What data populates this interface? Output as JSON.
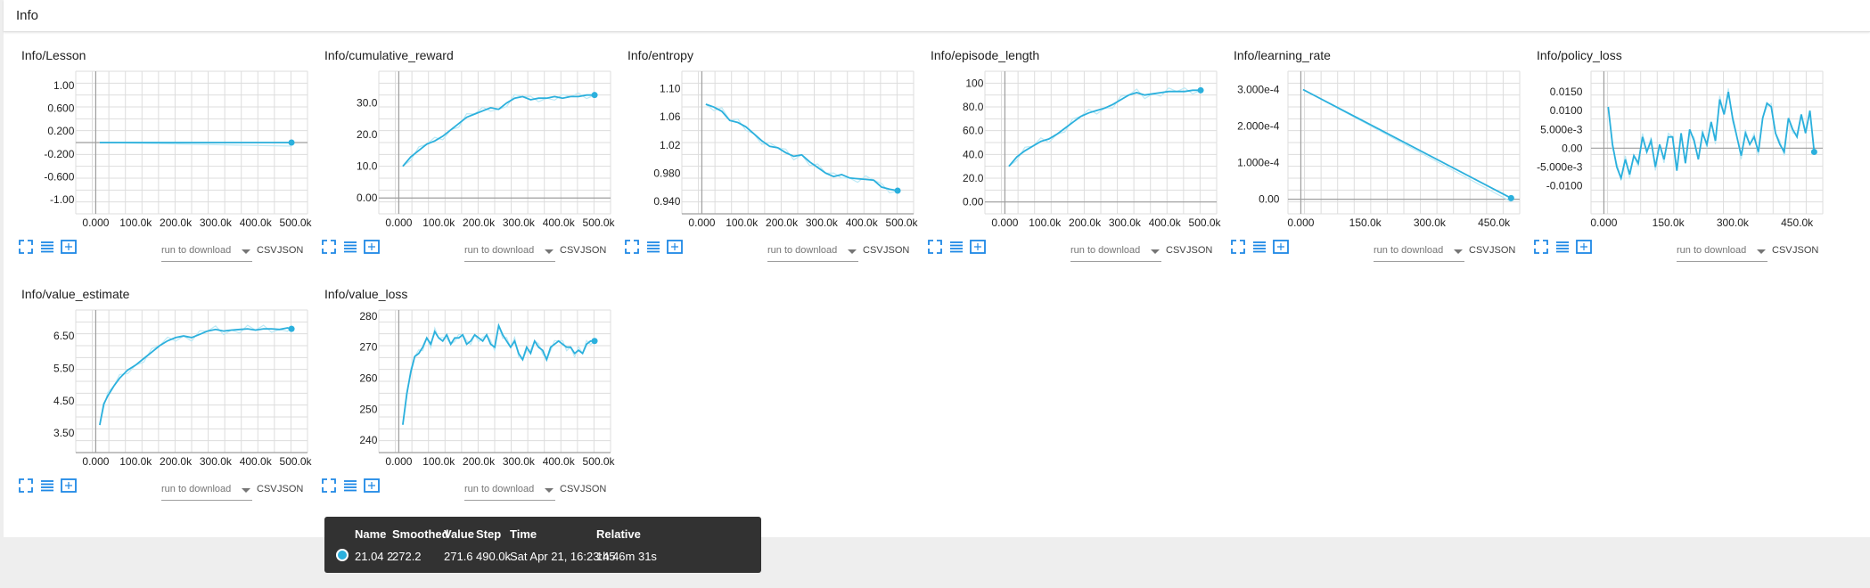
{
  "section": {
    "title": "Info"
  },
  "toolbar": {
    "run_select": "run to download",
    "csv": "CSV",
    "json": "JSON"
  },
  "colors": {
    "line": "#2bb0dd",
    "raw_line": "#bde9f5",
    "grid": "#dddddd",
    "axis": "#9e9e9e"
  },
  "icons": {
    "fit": "fit-domain-icon",
    "log": "log-scale-icon",
    "expand": "expand-chart-icon"
  },
  "chart_data": [
    {
      "title": "Info/Lesson",
      "type": "line",
      "xlim": [
        -50000,
        530000
      ],
      "ylim": [
        -1.25,
        1.25
      ],
      "xticks": [
        0,
        100000,
        200000,
        300000,
        400000,
        500000
      ],
      "xtick_labels": [
        "0.000",
        "100.0k",
        "200.0k",
        "300.0k",
        "400.0k",
        "500.0k"
      ],
      "yticks": [
        1,
        0.6,
        0.2,
        -0.2,
        -0.6,
        -1
      ],
      "ytick_labels": [
        "1.00",
        "0.600",
        "0.200",
        "-0.200",
        "-0.600",
        "-1.00"
      ],
      "series": [
        {
          "x": [
            10000,
            490000
          ],
          "y": [
            0,
            0
          ]
        }
      ]
    },
    {
      "title": "Info/cumulative_reward",
      "type": "line",
      "xlim": [
        -50000,
        530000
      ],
      "ylim": [
        -5,
        40
      ],
      "xticks": [
        0,
        100000,
        200000,
        300000,
        400000,
        500000
      ],
      "xtick_labels": [
        "0.000",
        "100.0k",
        "200.0k",
        "300.0k",
        "400.0k",
        "500.0k"
      ],
      "yticks": [
        0,
        10,
        20,
        30
      ],
      "ytick_labels": [
        "0.00",
        "10.0",
        "20.0",
        "30.0"
      ],
      "series": [
        {
          "x": [
            10000,
            30000,
            50000,
            70000,
            90000,
            110000,
            130000,
            150000,
            170000,
            190000,
            210000,
            230000,
            250000,
            270000,
            290000,
            310000,
            330000,
            350000,
            370000,
            390000,
            410000,
            430000,
            450000,
            470000,
            490000
          ],
          "y": [
            10,
            13,
            15,
            17,
            18,
            19.5,
            21.5,
            23.5,
            25.5,
            26.5,
            27.5,
            28.5,
            28,
            30,
            31.5,
            32,
            31,
            31.5,
            31.5,
            32,
            31.5,
            32,
            32,
            32.5,
            32.5
          ]
        }
      ]
    },
    {
      "title": "Info/entropy",
      "type": "line",
      "xlim": [
        -50000,
        530000
      ],
      "ylim": [
        0.922,
        1.125
      ],
      "xticks": [
        0,
        100000,
        200000,
        300000,
        400000,
        500000
      ],
      "xtick_labels": [
        "0.000",
        "100.0k",
        "200.0k",
        "300.0k",
        "400.0k",
        "500.0k"
      ],
      "yticks": [
        1.1,
        1.06,
        1.02,
        0.98,
        0.94
      ],
      "ytick_labels": [
        "1.10",
        "1.06",
        "1.02",
        "0.980",
        "0.940"
      ],
      "series": [
        {
          "x": [
            10000,
            30000,
            50000,
            70000,
            90000,
            110000,
            130000,
            150000,
            170000,
            190000,
            210000,
            230000,
            250000,
            270000,
            290000,
            310000,
            330000,
            350000,
            370000,
            390000,
            410000,
            430000,
            450000,
            470000,
            490000
          ],
          "y": [
            1.078,
            1.074,
            1.068,
            1.055,
            1.052,
            1.046,
            1.036,
            1.026,
            1.018,
            1.016,
            1.009,
            1.004,
            1.006,
            0.996,
            0.988,
            0.98,
            0.975,
            0.978,
            0.973,
            0.972,
            0.971,
            0.97,
            0.96,
            0.957,
            0.955
          ]
        }
      ]
    },
    {
      "title": "Info/episode_length",
      "type": "line",
      "xlim": [
        -50000,
        530000
      ],
      "ylim": [
        -10,
        110
      ],
      "xticks": [
        0,
        100000,
        200000,
        300000,
        400000,
        500000
      ],
      "xtick_labels": [
        "0.000",
        "100.0k",
        "200.0k",
        "300.0k",
        "400.0k",
        "500.0k"
      ],
      "yticks": [
        0,
        20,
        40,
        60,
        80,
        100
      ],
      "ytick_labels": [
        "0.00",
        "20.0",
        "40.0",
        "60.0",
        "80.0",
        "100"
      ],
      "series": [
        {
          "x": [
            10000,
            30000,
            50000,
            70000,
            90000,
            110000,
            130000,
            150000,
            170000,
            190000,
            210000,
            230000,
            250000,
            270000,
            290000,
            310000,
            330000,
            350000,
            370000,
            390000,
            410000,
            430000,
            450000,
            470000,
            490000
          ],
          "y": [
            30,
            38,
            43,
            47,
            51,
            53,
            57,
            62,
            67,
            72,
            75,
            77,
            79,
            82,
            86,
            90,
            92,
            90,
            91,
            92,
            93,
            93,
            93,
            94,
            94
          ]
        }
      ]
    },
    {
      "title": "Info/learning_rate",
      "type": "line",
      "xlim": [
        -30000,
        510000
      ],
      "ylim": [
        -4e-05,
        0.00035
      ],
      "xticks": [
        0,
        150000,
        300000,
        450000
      ],
      "xtick_labels": [
        "0.000",
        "150.0k",
        "300.0k",
        "450.0k"
      ],
      "yticks": [
        0,
        0.0001,
        0.0002,
        0.0003
      ],
      "ytick_labels": [
        "0.00",
        "1.000e-4",
        "2.000e-4",
        "3.000e-4"
      ],
      "series": [
        {
          "x": [
            5000,
            490000
          ],
          "y": [
            0.0003,
            3e-06
          ]
        }
      ]
    },
    {
      "title": "Info/policy_loss",
      "type": "line",
      "xlim": [
        -30000,
        510000
      ],
      "ylim": [
        -0.0175,
        0.0205
      ],
      "xticks": [
        0,
        150000,
        300000,
        450000
      ],
      "xtick_labels": [
        "0.000",
        "150.0k",
        "300.0k",
        "450.0k"
      ],
      "yticks": [
        0.015,
        0.01,
        0.005,
        0,
        -0.005,
        -0.01
      ],
      "ytick_labels": [
        "0.0150",
        "0.0100",
        "5.000e-3",
        "0.00",
        "-5.000e-3",
        "-0.0100"
      ],
      "series": [
        {
          "x": [
            10000,
            20000,
            30000,
            40000,
            50000,
            60000,
            70000,
            80000,
            90000,
            100000,
            110000,
            120000,
            130000,
            140000,
            150000,
            160000,
            170000,
            180000,
            190000,
            200000,
            210000,
            220000,
            230000,
            240000,
            250000,
            260000,
            270000,
            280000,
            290000,
            300000,
            310000,
            320000,
            330000,
            340000,
            350000,
            360000,
            370000,
            380000,
            390000,
            400000,
            410000,
            420000,
            430000,
            440000,
            450000,
            460000,
            470000,
            480000,
            490000
          ],
          "y": [
            0.011,
            0.001,
            -0.005,
            -0.008,
            -0.003,
            -0.007,
            -0.002,
            -0.004,
            0.003,
            -0.001,
            0.002,
            -0.005,
            0.001,
            -0.003,
            0.003,
            0.003,
            -0.006,
            0.004,
            -0.004,
            0.005,
            0.002,
            -0.003,
            0.004,
            0.001,
            0.007,
            0.002,
            0.013,
            0.009,
            0.015,
            0.008,
            0.003,
            -0.002,
            0.004,
            0.001,
            0.003,
            -0.001,
            0.008,
            0.012,
            0.011,
            0.004,
            0.001,
            -0.001,
            0.008,
            0.005,
            0.003,
            0.009,
            0.004,
            0.01,
            -0.001
          ]
        }
      ]
    },
    {
      "title": "Info/value_estimate",
      "type": "line",
      "xlim": [
        -50000,
        530000
      ],
      "ylim": [
        2.9,
        7.3
      ],
      "xticks": [
        0,
        100000,
        200000,
        300000,
        400000,
        500000
      ],
      "xtick_labels": [
        "0.000",
        "100.0k",
        "200.0k",
        "300.0k",
        "400.0k",
        "500.0k"
      ],
      "yticks": [
        6.5,
        5.5,
        4.5,
        3.5
      ],
      "ytick_labels": [
        "6.50",
        "5.50",
        "4.50",
        "3.50"
      ],
      "series": [
        {
          "x": [
            10000,
            20000,
            30000,
            45000,
            60000,
            80000,
            100000,
            120000,
            140000,
            160000,
            180000,
            200000,
            220000,
            240000,
            260000,
            280000,
            300000,
            320000,
            340000,
            360000,
            380000,
            400000,
            420000,
            440000,
            460000,
            480000,
            490000
          ],
          "y": [
            3.75,
            4.4,
            4.65,
            4.95,
            5.2,
            5.45,
            5.6,
            5.8,
            6.0,
            6.2,
            6.35,
            6.45,
            6.5,
            6.45,
            6.55,
            6.65,
            6.7,
            6.65,
            6.68,
            6.7,
            6.72,
            6.68,
            6.72,
            6.72,
            6.7,
            6.75,
            6.72
          ]
        }
      ]
    },
    {
      "title": "Info/value_loss",
      "type": "line",
      "xlim": [
        -50000,
        530000
      ],
      "ylim": [
        236,
        282
      ],
      "xticks": [
        0,
        100000,
        200000,
        300000,
        400000,
        500000
      ],
      "xtick_labels": [
        "0.000",
        "100.0k",
        "200.0k",
        "300.0k",
        "400.0k",
        "500.0k"
      ],
      "yticks": [
        280,
        270,
        260,
        250,
        240
      ],
      "ytick_labels": [
        "280",
        "270",
        "260",
        "250",
        "240"
      ],
      "series": [
        {
          "x": [
            10000,
            20000,
            30000,
            40000,
            50000,
            60000,
            70000,
            80000,
            90000,
            100000,
            110000,
            120000,
            130000,
            140000,
            150000,
            160000,
            170000,
            180000,
            190000,
            200000,
            210000,
            220000,
            230000,
            240000,
            250000,
            260000,
            270000,
            280000,
            290000,
            300000,
            310000,
            320000,
            330000,
            340000,
            350000,
            360000,
            370000,
            380000,
            390000,
            400000,
            410000,
            420000,
            430000,
            440000,
            450000,
            460000,
            470000,
            480000,
            490000
          ],
          "y": [
            245,
            255,
            262,
            267,
            268,
            270,
            273,
            271,
            275,
            273,
            272,
            274,
            271,
            273,
            273,
            274,
            271,
            272,
            274,
            273,
            272,
            274,
            271,
            270,
            277,
            274,
            272,
            270,
            272,
            268,
            266,
            270,
            268,
            272,
            270,
            269,
            266,
            270,
            271,
            272,
            271,
            270,
            270,
            268,
            269,
            268,
            271,
            272,
            272
          ]
        }
      ]
    }
  ],
  "tooltip": {
    "headers": [
      "Name",
      "Smoothed",
      "Value",
      "Step",
      "Time",
      "Relative"
    ],
    "row": [
      "21.04 2",
      "272.2",
      "271.6",
      "490.0k",
      "Sat Apr 21, 16:23:45",
      "1h 46m 31s"
    ]
  }
}
